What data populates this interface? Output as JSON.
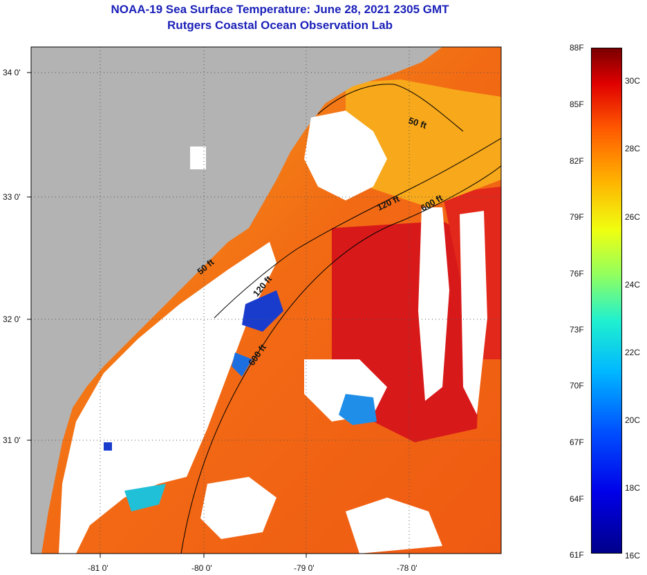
{
  "title": {
    "line1": "NOAA-19 Sea Surface Temperature:  June 28, 2021 2305 GMT",
    "line2": "Rutgers Coastal Ocean Observation Lab"
  },
  "axes": {
    "lat_labels": [
      "34 0'",
      "33 0'",
      "32 0'",
      "31 0'"
    ],
    "lon_labels": [
      "-81 0'",
      "-80 0'",
      "-79 0'",
      "-78 0'"
    ]
  },
  "contours": {
    "c50_a": "50 ft",
    "c50_b": "50 ft",
    "c120_a": "120 ft",
    "c120_b": "120 ft",
    "c600_a": "600 ft",
    "c600_b": "600 ft"
  },
  "colorbar": {
    "fahrenheit": [
      "88F",
      "85F",
      "82F",
      "79F",
      "76F",
      "73F",
      "70F",
      "67F",
      "64F",
      "61F"
    ],
    "celsius": [
      "30C",
      "28C",
      "26C",
      "24C",
      "22C",
      "20C",
      "18C",
      "16C"
    ],
    "range_f": [
      61,
      88
    ],
    "range_c": [
      16,
      31.1
    ]
  },
  "colors": {
    "land": "#b3b3b3",
    "cloud": "#ffffff",
    "sst_warm": "#f25a12",
    "sst_hot": "#d8191a",
    "sst_mild": "#f9a61a",
    "sst_cool": "#1a3ccd",
    "title": "#1a20b8"
  }
}
